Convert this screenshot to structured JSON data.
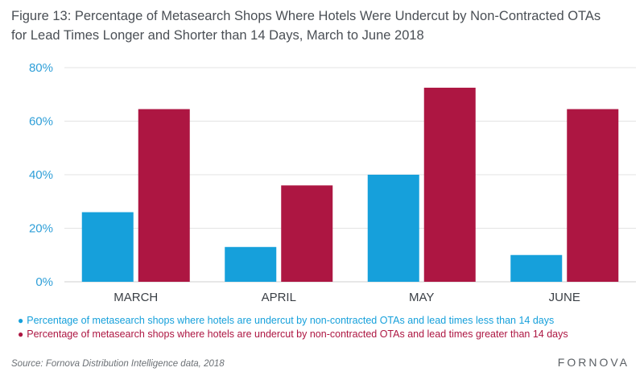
{
  "title_line1": "Figure 13: Percentage of Metasearch Shops Where Hotels Were Undercut by Non-Contracted OTAs",
  "title_line2": "for Lead Times Longer and Shorter than 14 Days, March to June 2018",
  "source": "Source: Fornova Distribution Intelligence data, 2018",
  "brand": "FORNOVA",
  "colors": {
    "less": "#16a0db",
    "greater": "#ad1642",
    "axis_text": "#2f9fd8",
    "grid": "#e3e3e3"
  },
  "chart_data": {
    "type": "bar",
    "title": "Figure 13: Percentage of Metasearch Shops Where Hotels Were Undercut by Non-Contracted OTAs for Lead Times Longer and Shorter than 14 Days, March to June 2018",
    "categories": [
      "MARCH",
      "APRIL",
      "MAY",
      "JUNE"
    ],
    "series": [
      {
        "name": "Percentage of metasearch shops where hotels are undercut by non-contracted OTAs and lead times less than 14 days",
        "values": [
          26,
          13,
          40,
          10
        ],
        "color": "#16a0db"
      },
      {
        "name": "Percentage of metasearch shops where hotels are undercut by non-contracted OTAs and lead times greater than 14 days",
        "values": [
          64.5,
          36,
          72.5,
          64.5
        ],
        "color": "#ad1642"
      }
    ],
    "ylim": [
      0,
      80
    ],
    "yticks": [
      "0%",
      "20%",
      "40%",
      "60%",
      "80%"
    ],
    "xlabel": "",
    "ylabel": "",
    "grid": true,
    "legend_position": "bottom"
  }
}
